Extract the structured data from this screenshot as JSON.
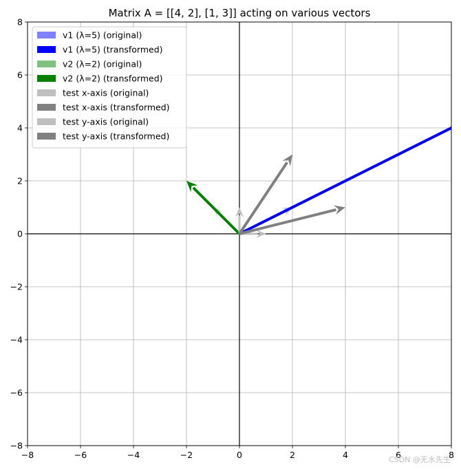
{
  "chart_data": {
    "type": "quiver",
    "title": "Matrix A = [[4, 2], [1, 3]] acting on various vectors",
    "xlabel": "",
    "ylabel": "",
    "xlim": [
      -8,
      8
    ],
    "ylim": [
      -8,
      8
    ],
    "xticks": [
      "−8",
      "−6",
      "−4",
      "−2",
      "0",
      "2",
      "4",
      "6",
      "8"
    ],
    "yticks": [
      "−8",
      "−6",
      "−4",
      "−2",
      "0",
      "2",
      "4",
      "6",
      "8"
    ],
    "grid": true,
    "legend_position": "upper-left",
    "series": [
      {
        "name": "v1 (λ=5) (original)",
        "x0": 0,
        "y0": 0,
        "dx": 2,
        "dy": 1,
        "color": "#8080ff",
        "alpha": 0.5,
        "width": "thin"
      },
      {
        "name": "v1 (λ=5) (transformed)",
        "x0": 0,
        "y0": 0,
        "dx": 10,
        "dy": 5,
        "color": "#0000ff",
        "alpha": 1.0,
        "width": "thick"
      },
      {
        "name": "v2 (λ=2) (original)",
        "x0": 0,
        "y0": 0,
        "dx": -1,
        "dy": 1,
        "color": "#80c080",
        "alpha": 0.5,
        "width": "thin"
      },
      {
        "name": "v2 (λ=2) (transformed)",
        "x0": 0,
        "y0": 0,
        "dx": -2,
        "dy": 2,
        "color": "#008000",
        "alpha": 1.0,
        "width": "thick"
      },
      {
        "name": "test x-axis (original)",
        "x0": 0,
        "y0": 0,
        "dx": 1,
        "dy": 0,
        "color": "#bfbfbf",
        "alpha": 1.0,
        "width": "thin"
      },
      {
        "name": "test x-axis (transformed)",
        "x0": 0,
        "y0": 0,
        "dx": 4,
        "dy": 1,
        "color": "#808080",
        "alpha": 1.0,
        "width": "thick"
      },
      {
        "name": "test y-axis (original)",
        "x0": 0,
        "y0": 0,
        "dx": 0,
        "dy": 1,
        "color": "#bfbfbf",
        "alpha": 1.0,
        "width": "thin"
      },
      {
        "name": "test y-axis (transformed)",
        "x0": 0,
        "y0": 0,
        "dx": 2,
        "dy": 3,
        "color": "#808080",
        "alpha": 1.0,
        "width": "thick"
      }
    ]
  },
  "watermark": "CSDN @无水先生"
}
